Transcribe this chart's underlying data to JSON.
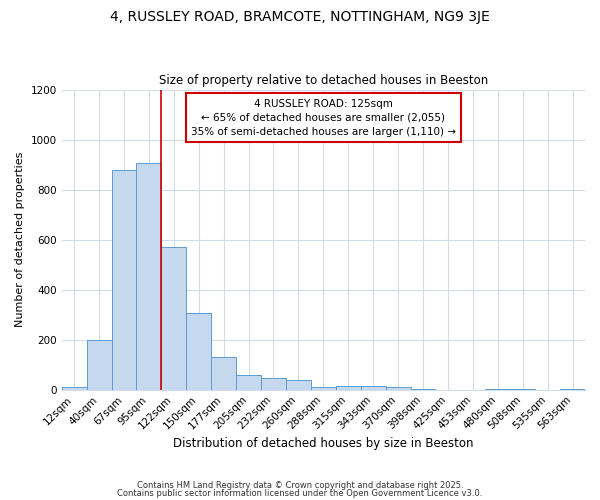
{
  "title1": "4, RUSSLEY ROAD, BRAMCOTE, NOTTINGHAM, NG9 3JE",
  "title2": "Size of property relative to detached houses in Beeston",
  "xlabel": "Distribution of detached houses by size in Beeston",
  "ylabel": "Number of detached properties",
  "categories": [
    "12sqm",
    "40sqm",
    "67sqm",
    "95sqm",
    "122sqm",
    "150sqm",
    "177sqm",
    "205sqm",
    "232sqm",
    "260sqm",
    "288sqm",
    "315sqm",
    "343sqm",
    "370sqm",
    "398sqm",
    "425sqm",
    "453sqm",
    "480sqm",
    "508sqm",
    "535sqm",
    "563sqm"
  ],
  "values": [
    10,
    200,
    880,
    905,
    570,
    305,
    130,
    60,
    48,
    38,
    12,
    15,
    15,
    10,
    2,
    0,
    0,
    2,
    2,
    0,
    2
  ],
  "bar_color": "#c5d8ed",
  "bar_edge_color": "#5b9bd5",
  "red_line_index": 4,
  "annotation_text": "4 RUSSLEY ROAD: 125sqm\n← 65% of detached houses are smaller (2,055)\n35% of semi-detached houses are larger (1,110) →",
  "annotation_box_color": "#ffffff",
  "annotation_box_edge": "#cc0000",
  "footer1": "Contains HM Land Registry data © Crown copyright and database right 2025.",
  "footer2": "Contains public sector information licensed under the Open Government Licence v3.0.",
  "background_color": "#ffffff",
  "grid_color": "#d0dce8",
  "ylim": [
    0,
    1200
  ],
  "yticks": [
    0,
    200,
    400,
    600,
    800,
    1000,
    1200
  ]
}
